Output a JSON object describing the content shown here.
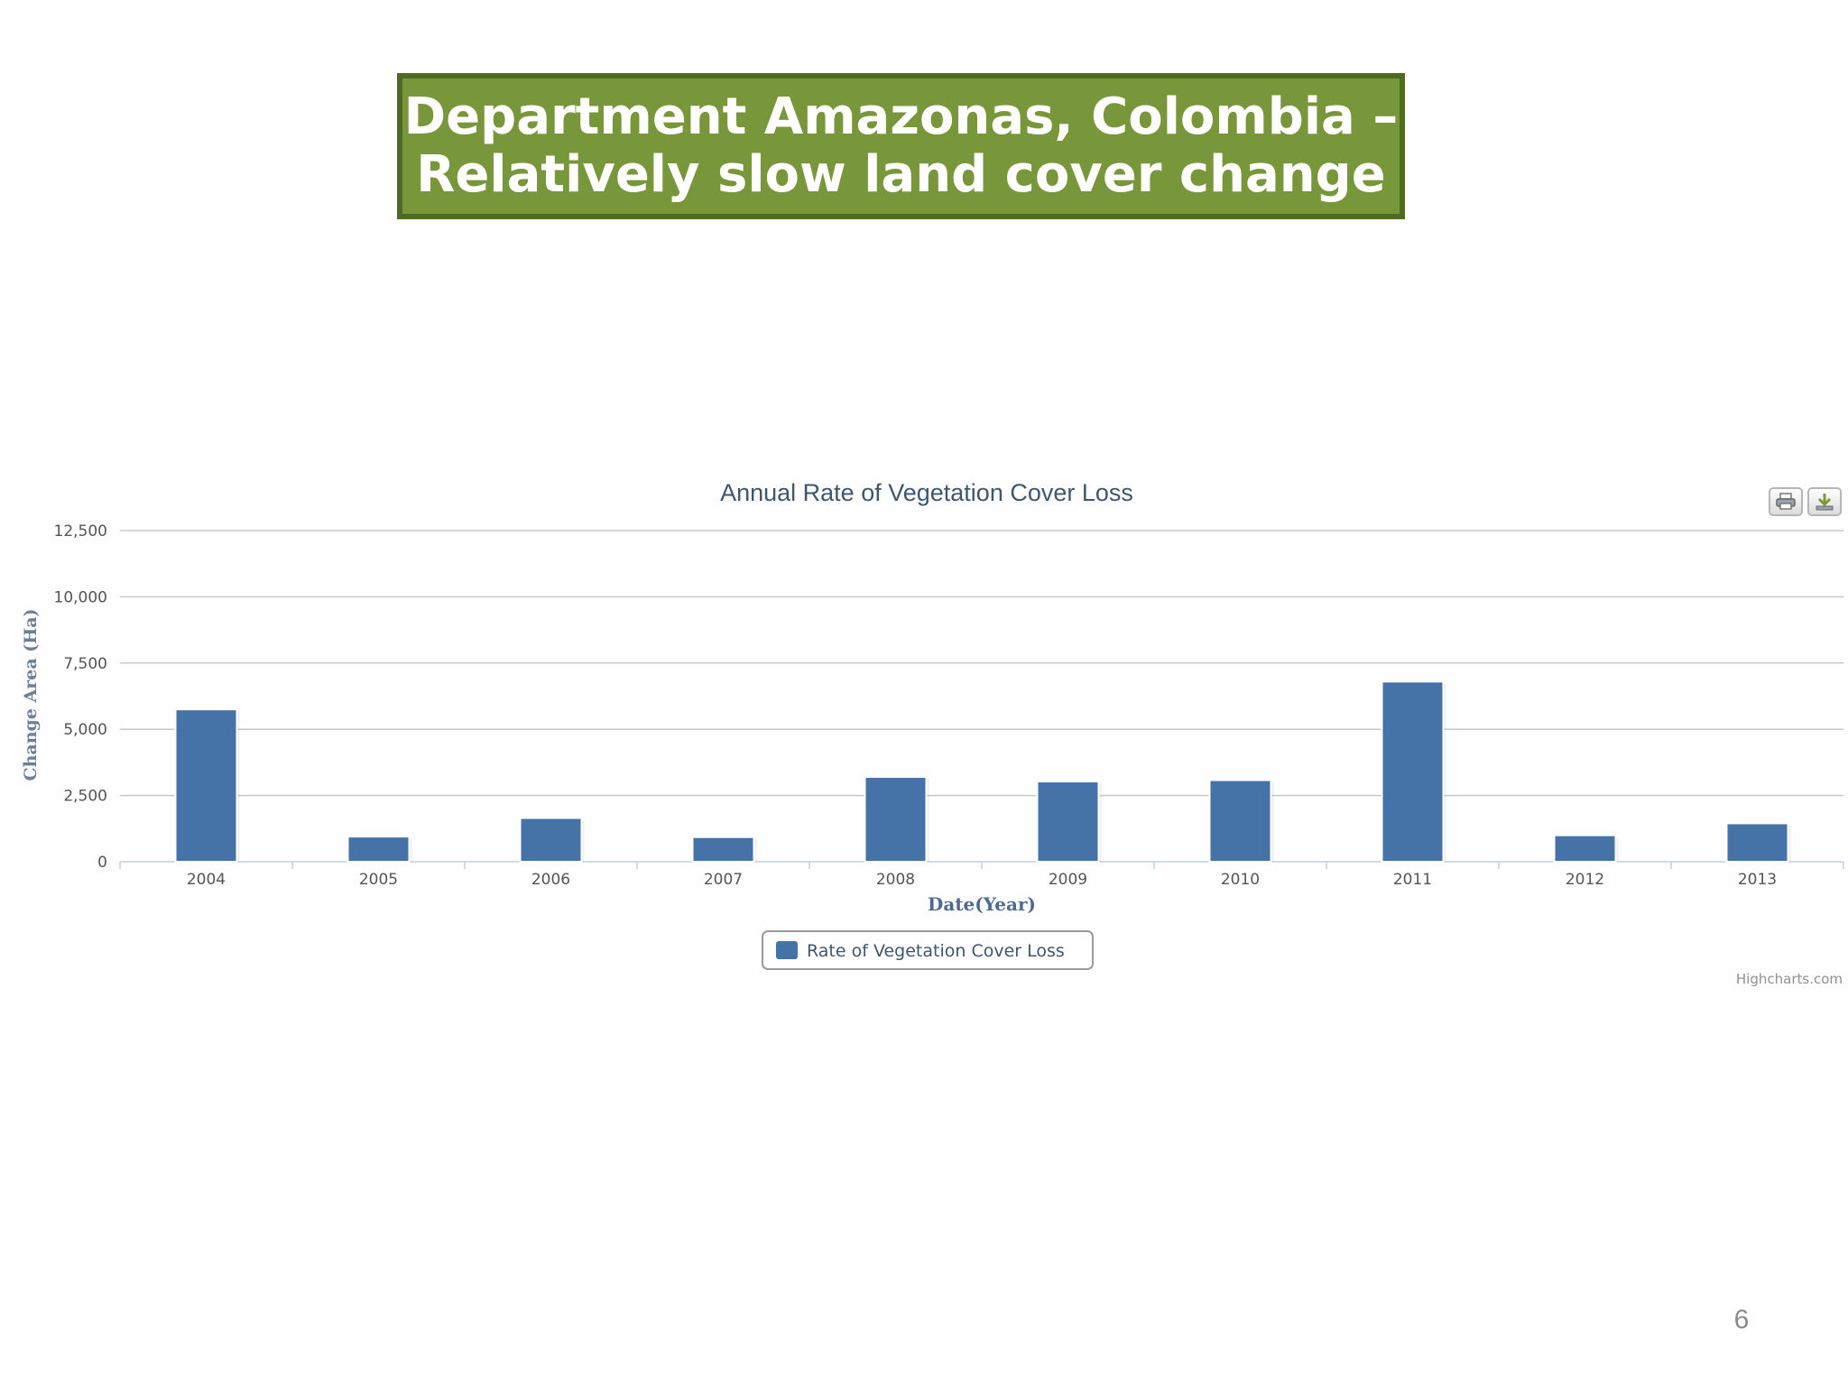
{
  "slide": {
    "title_line1": "Department Amazonas, Colombia –",
    "title_line2": "Relatively slow land cover change",
    "page_number": "6"
  },
  "toolbar": {
    "print_icon": "printer-icon",
    "download_icon": "download-icon"
  },
  "chart_data": {
    "type": "bar",
    "title": "Annual Rate of Vegetation Cover Loss",
    "xlabel": "Date(Year)",
    "ylabel": "Change Area (Ha)",
    "categories": [
      "2004",
      "2005",
      "2006",
      "2007",
      "2008",
      "2009",
      "2010",
      "2011",
      "2012",
      "2013"
    ],
    "series": [
      {
        "name": "Rate of Vegetation Cover Loss",
        "values": [
          5750,
          950,
          1650,
          930,
          3200,
          3030,
          3080,
          6800,
          1000,
          1450
        ],
        "color": "#4572a7"
      }
    ],
    "ylim": [
      0,
      12500
    ],
    "yticks": [
      0,
      2500,
      5000,
      7500,
      10000,
      12500
    ],
    "ytick_labels": [
      "0",
      "2,500",
      "5,000",
      "7,500",
      "10,000",
      "12,500"
    ],
    "grid": true,
    "legend_position": "bottom-center",
    "credits": "Highcharts.com"
  }
}
